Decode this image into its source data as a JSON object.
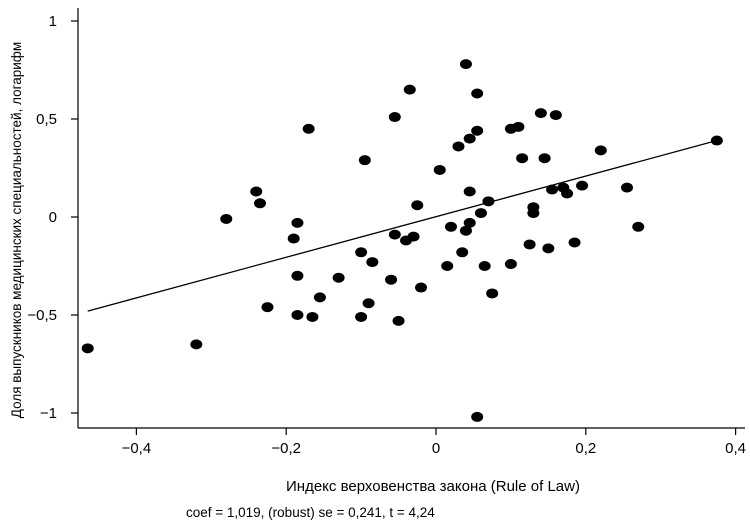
{
  "chart_data": {
    "type": "scatter",
    "title": "",
    "xlabel": "Индекс верховенства закона (Rule of Law)",
    "ylabel": "Доля выпускников медицинских специальностей, логарифм",
    "note": "coef = 1,019, (robust) se = 0,241, t = 4,24",
    "xlim": [
      -0.47,
      0.4
    ],
    "ylim": [
      -1.05,
      1.0
    ],
    "x_ticks": [
      -0.4,
      -0.2,
      0,
      0.2,
      0.4
    ],
    "x_tick_labels": [
      "−0,4",
      "−0,2",
      "0",
      "0,2",
      "0,4"
    ],
    "y_ticks": [
      -1,
      -0.5,
      0,
      0.5,
      1
    ],
    "y_tick_labels": [
      "−1",
      "−0,5",
      "0",
      "0,5",
      "1"
    ],
    "grid": false,
    "fit_line": {
      "x": [
        -0.465,
        0.375
      ],
      "y": [
        -0.48,
        0.39
      ]
    },
    "points": [
      {
        "x": -0.465,
        "y": -0.67
      },
      {
        "x": -0.32,
        "y": -0.65
      },
      {
        "x": -0.28,
        "y": -0.01
      },
      {
        "x": -0.24,
        "y": 0.13
      },
      {
        "x": -0.235,
        "y": 0.07
      },
      {
        "x": -0.225,
        "y": -0.46
      },
      {
        "x": -0.19,
        "y": -0.11
      },
      {
        "x": -0.185,
        "y": -0.03
      },
      {
        "x": -0.185,
        "y": -0.3
      },
      {
        "x": -0.185,
        "y": -0.5
      },
      {
        "x": -0.17,
        "y": 0.45
      },
      {
        "x": -0.165,
        "y": -0.51
      },
      {
        "x": -0.155,
        "y": -0.41
      },
      {
        "x": -0.13,
        "y": -0.31
      },
      {
        "x": -0.1,
        "y": -0.18
      },
      {
        "x": -0.1,
        "y": -0.51
      },
      {
        "x": -0.095,
        "y": 0.29
      },
      {
        "x": -0.09,
        "y": -0.44
      },
      {
        "x": -0.085,
        "y": -0.23
      },
      {
        "x": -0.06,
        "y": -0.32
      },
      {
        "x": -0.055,
        "y": 0.51
      },
      {
        "x": -0.055,
        "y": -0.09
      },
      {
        "x": -0.05,
        "y": -0.53
      },
      {
        "x": -0.04,
        "y": -0.12
      },
      {
        "x": -0.035,
        "y": 0.65
      },
      {
        "x": -0.03,
        "y": -0.1
      },
      {
        "x": -0.025,
        "y": 0.06
      },
      {
        "x": -0.02,
        "y": -0.36
      },
      {
        "x": 0.005,
        "y": 0.24
      },
      {
        "x": 0.015,
        "y": -0.25
      },
      {
        "x": 0.02,
        "y": -0.05
      },
      {
        "x": 0.03,
        "y": 0.36
      },
      {
        "x": 0.035,
        "y": -0.18
      },
      {
        "x": 0.04,
        "y": 0.78
      },
      {
        "x": 0.04,
        "y": -0.07
      },
      {
        "x": 0.045,
        "y": 0.4
      },
      {
        "x": 0.045,
        "y": 0.13
      },
      {
        "x": 0.045,
        "y": -0.03
      },
      {
        "x": 0.055,
        "y": 0.63
      },
      {
        "x": 0.055,
        "y": 0.44
      },
      {
        "x": 0.055,
        "y": -1.02
      },
      {
        "x": 0.06,
        "y": 0.02
      },
      {
        "x": 0.065,
        "y": -0.25
      },
      {
        "x": 0.07,
        "y": 0.08
      },
      {
        "x": 0.075,
        "y": -0.39
      },
      {
        "x": 0.1,
        "y": -0.24
      },
      {
        "x": 0.1,
        "y": 0.45
      },
      {
        "x": 0.11,
        "y": 0.46
      },
      {
        "x": 0.115,
        "y": 0.3
      },
      {
        "x": 0.125,
        "y": -0.14
      },
      {
        "x": 0.13,
        "y": 0.05
      },
      {
        "x": 0.13,
        "y": 0.02
      },
      {
        "x": 0.14,
        "y": 0.53
      },
      {
        "x": 0.145,
        "y": 0.3
      },
      {
        "x": 0.15,
        "y": -0.16
      },
      {
        "x": 0.155,
        "y": 0.14
      },
      {
        "x": 0.16,
        "y": 0.52
      },
      {
        "x": 0.17,
        "y": 0.15
      },
      {
        "x": 0.175,
        "y": 0.12
      },
      {
        "x": 0.185,
        "y": -0.13
      },
      {
        "x": 0.195,
        "y": 0.16
      },
      {
        "x": 0.22,
        "y": 0.34
      },
      {
        "x": 0.255,
        "y": 0.15
      },
      {
        "x": 0.27,
        "y": -0.05
      },
      {
        "x": 0.375,
        "y": 0.39
      }
    ]
  }
}
